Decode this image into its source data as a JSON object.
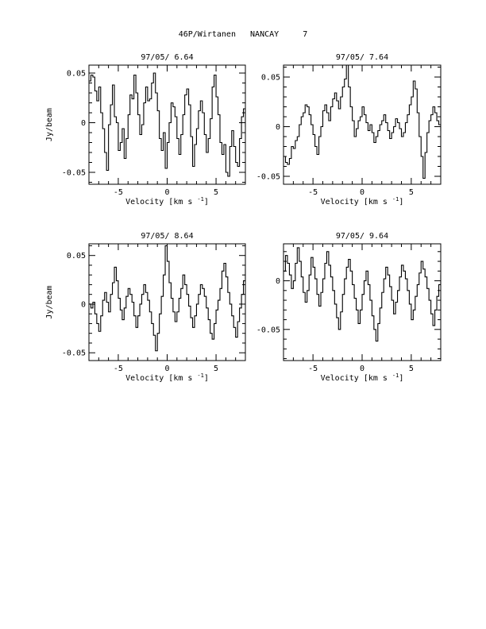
{
  "figure_title": "46P/Wirtanen   NANCAY     7",
  "shared": {
    "xlabel": "Velocity [km s",
    "xlabel_exp": "-1",
    "xlabel_close": "]",
    "ylabel": "Jy/beam"
  },
  "chart_data": [
    {
      "type": "line",
      "step": true,
      "title": "97/05/ 6.64",
      "xlabel": "Velocity [km s-1]",
      "ylabel": "Jy/beam",
      "xlim": [
        -8,
        8
      ],
      "ylim": [
        -0.062,
        0.058
      ],
      "xticks": [
        -5,
        0,
        5
      ],
      "xtick_labels": [
        "-5",
        "0",
        "5"
      ],
      "yticks": [
        -0.05,
        0,
        0.05
      ],
      "ytick_labels": [
        "-0.05",
        "0",
        "0.05"
      ],
      "grid": false,
      "x_start": -8,
      "x_step": 0.2,
      "values": [
        0.042,
        0.048,
        0.046,
        0.032,
        0.022,
        0.036,
        0.01,
        -0.006,
        -0.03,
        -0.048,
        -0.002,
        0.018,
        0.038,
        0.006,
        0.0,
        -0.028,
        -0.02,
        -0.006,
        -0.036,
        -0.016,
        0.008,
        0.028,
        0.024,
        0.048,
        0.03,
        0.008,
        -0.012,
        -0.002,
        0.02,
        0.036,
        0.022,
        0.024,
        0.04,
        0.05,
        0.03,
        0.012,
        -0.016,
        -0.028,
        -0.01,
        -0.046,
        -0.02,
        0.0,
        0.02,
        0.016,
        0.006,
        -0.016,
        -0.032,
        -0.012,
        0.008,
        0.028,
        0.034,
        0.018,
        -0.014,
        -0.044,
        -0.022,
        -0.006,
        0.012,
        0.022,
        0.01,
        -0.012,
        -0.03,
        -0.016,
        0.004,
        0.036,
        0.048,
        0.026,
        0.008,
        -0.02,
        -0.032,
        -0.022,
        -0.05,
        -0.054,
        -0.024,
        -0.008,
        -0.024,
        -0.04,
        -0.044,
        -0.016,
        0.006,
        0.014,
        -0.004,
        -0.018,
        0.01,
        0.026,
        0.044,
        0.032,
        0.012,
        -0.008,
        -0.002,
        0.012,
        0.026,
        0.01,
        -0.012,
        -0.036,
        -0.018,
        0.002,
        0.02,
        0.042,
        0.024,
        0.032,
        0.018,
        -0.004,
        0.01,
        0.028,
        0.008,
        -0.008,
        0.0,
        0.016,
        0.036,
        0.044,
        0.012,
        -0.018,
        -0.034,
        -0.01,
        0.004,
        0.02,
        0.036,
        0.024,
        -0.006,
        -0.028,
        -0.044,
        -0.02,
        0.01,
        0.022,
        0.002,
        -0.018,
        -0.04,
        -0.014,
        0.006,
        0.018,
        0.04,
        0.024,
        0.008,
        -0.012,
        0.0,
        0.014,
        0.04,
        0.05,
        0.034,
        0.012,
        -0.01,
        -0.026,
        -0.014,
        0.006,
        0.026,
        0.038,
        0.02,
        0.004,
        -0.014,
        -0.03,
        -0.008,
        0.016,
        0.034,
        0.046,
        0.028,
        0.01,
        -0.006,
        0.004,
        0.022,
        0.04,
        0.03,
        0.012,
        0.002,
        -0.014,
        -0.028,
        -0.01,
        0.006,
        0.02,
        0.036,
        0.016,
        0.0,
        -0.018,
        0.004,
        0.026,
        0.01,
        -0.01,
        -0.03,
        -0.042,
        -0.02,
        0.002,
        0.02,
        0.034,
        0.018,
        0.006,
        -0.012,
        -0.028,
        -0.04,
        -0.022,
        -0.004,
        0.014,
        0.028,
        0.01,
        -0.004,
        -0.022,
        -0.036,
        -0.018,
        0.002,
        0.02,
        0.01,
        -0.008
      ]
    },
    {
      "type": "line",
      "step": true,
      "title": "97/05/ 7.64",
      "xlabel": "Velocity [km s-1]",
      "ylabel": "",
      "xlim": [
        -8,
        8
      ],
      "ylim": [
        -0.058,
        0.062
      ],
      "xticks": [
        -5,
        0,
        5
      ],
      "xtick_labels": [
        "-5",
        "0",
        "5"
      ],
      "yticks": [
        -0.05,
        0,
        0.05
      ],
      "ytick_labels": [
        "-0.05",
        "0",
        "0.05"
      ],
      "grid": false,
      "x_start": -8,
      "x_step": 0.2,
      "values": [
        -0.03,
        -0.036,
        -0.038,
        -0.032,
        -0.02,
        -0.022,
        -0.014,
        -0.01,
        0.002,
        0.01,
        0.014,
        0.022,
        0.02,
        0.012,
        0.002,
        -0.008,
        -0.02,
        -0.028,
        -0.01,
        0.0,
        0.016,
        0.022,
        0.014,
        0.006,
        0.02,
        0.028,
        0.034,
        0.026,
        0.018,
        0.03,
        0.04,
        0.048,
        0.062,
        0.04,
        0.02,
        0.006,
        -0.01,
        -0.002,
        0.006,
        0.01,
        0.02,
        0.012,
        0.004,
        -0.004,
        0.002,
        -0.006,
        -0.016,
        -0.01,
        -0.004,
        0.002,
        0.006,
        0.012,
        0.004,
        -0.004,
        -0.012,
        -0.006,
        0.0,
        0.008,
        0.004,
        -0.002,
        -0.01,
        -0.006,
        0.004,
        0.012,
        0.022,
        0.03,
        0.046,
        0.038,
        0.014,
        -0.01,
        -0.03,
        -0.052,
        -0.026,
        -0.006,
        0.006,
        0.012,
        0.02,
        0.014,
        0.006,
        0.002,
        -0.004,
        0.004,
        0.012,
        0.01,
        0.004,
        -0.008,
        -0.014,
        -0.004,
        0.006,
        0.01,
        0.004,
        -0.004,
        -0.014,
        -0.008,
        0.0,
        0.01,
        0.018,
        0.012,
        0.004,
        -0.008,
        -0.02,
        -0.03,
        -0.014,
        -0.002,
        0.012,
        0.024,
        0.03,
        0.02,
        0.01,
        0.0,
        -0.01,
        -0.016,
        -0.008,
        0.002,
        0.014,
        0.008,
        0.0,
        -0.006,
        0.002,
        0.012,
        0.02,
        0.014,
        0.004,
        -0.006,
        -0.014,
        -0.008,
        0.002,
        0.01,
        0.018,
        0.012,
        0.006,
        -0.002,
        -0.01,
        -0.018,
        -0.028,
        -0.016,
        -0.004,
        0.006,
        0.014,
        0.02,
        0.012,
        0.004,
        -0.004,
        -0.012,
        -0.02,
        -0.012,
        0.0,
        0.01,
        0.016,
        0.01,
        0.004,
        -0.006,
        -0.014,
        -0.02,
        -0.028,
        -0.018,
        -0.006,
        0.004,
        0.012,
        0.008,
        0.002,
        0.01,
        0.018,
        0.012,
        0.004,
        -0.004,
        -0.012,
        -0.018,
        -0.026,
        -0.016,
        -0.004,
        0.006,
        0.014,
        0.008,
        0.0,
        -0.008,
        -0.016,
        -0.01,
        0.0,
        0.01,
        0.018,
        0.012,
        0.004,
        -0.006,
        -0.014,
        -0.022,
        -0.014,
        -0.004,
        0.006,
        0.014,
        0.02,
        0.024,
        0.016,
        0.006,
        -0.004,
        -0.014,
        -0.02,
        -0.012,
        -0.002,
        0.008,
        0.014,
        0.006,
        -0.002
      ]
    },
    {
      "type": "line",
      "step": true,
      "title": "97/05/ 8.64",
      "xlabel": "Velocity [km s-1]",
      "ylabel": "Jy/beam",
      "xlim": [
        -8,
        8
      ],
      "ylim": [
        -0.058,
        0.062
      ],
      "xticks": [
        -5,
        0,
        5
      ],
      "xtick_labels": [
        "-5",
        "0",
        "5"
      ],
      "yticks": [
        -0.05,
        0,
        0.05
      ],
      "ytick_labels": [
        "-0.05",
        "0",
        "0.05"
      ],
      "grid": false,
      "x_start": -8,
      "x_step": 0.2,
      "values": [
        0.0,
        -0.004,
        0.002,
        -0.01,
        -0.02,
        -0.028,
        -0.012,
        0.004,
        0.012,
        0.002,
        -0.008,
        0.01,
        0.022,
        0.038,
        0.024,
        0.006,
        -0.006,
        -0.016,
        -0.004,
        0.008,
        0.016,
        0.01,
        0.002,
        -0.012,
        -0.024,
        -0.012,
        0.0,
        0.01,
        0.02,
        0.012,
        0.004,
        -0.008,
        -0.02,
        -0.032,
        -0.048,
        -0.03,
        -0.01,
        0.008,
        0.03,
        0.06,
        0.044,
        0.022,
        0.006,
        -0.008,
        -0.018,
        -0.008,
        0.006,
        0.016,
        0.03,
        0.02,
        0.01,
        -0.002,
        -0.014,
        -0.024,
        -0.012,
        0.0,
        0.01,
        0.02,
        0.016,
        0.008,
        -0.004,
        -0.016,
        -0.03,
        -0.036,
        -0.02,
        -0.006,
        0.004,
        0.016,
        0.034,
        0.042,
        0.028,
        0.012,
        0.0,
        -0.012,
        -0.024,
        -0.034,
        -0.018,
        -0.004,
        0.01,
        0.024,
        0.036,
        0.024,
        0.01,
        -0.002,
        -0.014,
        -0.03,
        -0.038,
        -0.022,
        -0.006,
        0.006,
        0.016,
        0.01,
        0.002,
        -0.008,
        -0.018,
        -0.028,
        -0.014,
        -0.002,
        0.01,
        0.022,
        0.034,
        0.026,
        0.012,
        0.002,
        -0.01,
        -0.02,
        -0.028,
        -0.016,
        -0.004,
        0.008,
        0.02,
        0.03,
        0.02,
        0.008,
        -0.004,
        -0.016,
        -0.026,
        -0.036,
        -0.02,
        -0.006,
        0.006,
        0.018,
        0.032,
        0.024,
        0.01,
        -0.002,
        -0.012,
        -0.022,
        -0.03,
        -0.016,
        -0.004,
        0.008,
        0.02,
        0.034,
        0.026,
        0.012,
        0.002,
        -0.01,
        -0.022,
        -0.032,
        -0.02,
        -0.008,
        0.004,
        0.016,
        0.026,
        0.018,
        0.008,
        -0.004,
        -0.016,
        -0.028,
        -0.038,
        -0.024,
        -0.008,
        0.004,
        0.018,
        0.03,
        0.022,
        0.01,
        -0.002,
        -0.014,
        -0.026,
        -0.034,
        -0.018,
        -0.004,
        0.008,
        0.02,
        0.034,
        0.028,
        0.014,
        0.002,
        -0.01,
        -0.022,
        -0.03,
        -0.016,
        -0.004,
        0.008,
        0.018,
        0.01,
        0.002,
        -0.008,
        -0.02,
        -0.034,
        -0.02,
        -0.006,
        0.006,
        0.018,
        0.028,
        0.018,
        0.006,
        -0.006,
        -0.018,
        -0.03,
        -0.04,
        -0.054,
        -0.03,
        -0.012,
        0.004,
        0.01
      ]
    },
    {
      "type": "line",
      "step": true,
      "title": "97/05/ 9.64",
      "xlabel": "Velocity [km s-1]",
      "ylabel": "",
      "xlim": [
        -8,
        8
      ],
      "ylim": [
        -0.082,
        0.038
      ],
      "xticks": [
        -5,
        0,
        5
      ],
      "xtick_labels": [
        "-5",
        "0",
        "5"
      ],
      "yticks": [
        -0.05,
        0
      ],
      "ytick_labels": [
        "-0.05",
        "0"
      ],
      "grid": false,
      "x_start": -8,
      "x_step": 0.2,
      "values": [
        0.01,
        0.026,
        0.018,
        0.006,
        -0.008,
        0.0,
        0.018,
        0.034,
        0.02,
        0.004,
        -0.012,
        -0.022,
        -0.01,
        0.006,
        0.024,
        0.014,
        0.002,
        -0.014,
        -0.026,
        -0.012,
        0.002,
        0.018,
        0.03,
        0.016,
        0.004,
        -0.01,
        -0.024,
        -0.038,
        -0.05,
        -0.032,
        -0.014,
        0.002,
        0.014,
        0.022,
        0.01,
        -0.004,
        -0.018,
        -0.03,
        -0.044,
        -0.03,
        -0.014,
        0.0,
        0.01,
        -0.004,
        -0.02,
        -0.036,
        -0.05,
        -0.062,
        -0.044,
        -0.028,
        -0.012,
        0.002,
        0.014,
        0.006,
        -0.006,
        -0.02,
        -0.034,
        -0.022,
        -0.01,
        0.004,
        0.016,
        0.01,
        0.002,
        -0.01,
        -0.024,
        -0.04,
        -0.03,
        -0.016,
        -0.004,
        0.008,
        0.02,
        0.012,
        0.004,
        -0.008,
        -0.02,
        -0.034,
        -0.046,
        -0.03,
        -0.016,
        -0.004,
        0.006,
        0.016,
        0.01,
        0.0,
        -0.012,
        -0.026,
        -0.04,
        -0.056,
        -0.072,
        -0.05,
        -0.03,
        -0.014,
        0.0,
        0.012,
        0.006,
        -0.004,
        -0.016,
        -0.03,
        -0.044,
        -0.03,
        -0.016,
        -0.004,
        0.008,
        0.016,
        0.01,
        0.002,
        -0.01,
        -0.022,
        -0.036,
        -0.024,
        -0.012,
        0.0,
        0.01,
        0.018,
        0.012,
        0.004,
        -0.006,
        -0.018,
        -0.03,
        -0.018,
        -0.006,
        0.006,
        0.016,
        0.024,
        0.016,
        0.006,
        -0.004,
        -0.016,
        -0.028,
        -0.016,
        -0.004,
        0.008,
        0.018,
        0.026,
        0.018,
        0.008,
        -0.002,
        -0.012,
        -0.024,
        -0.014,
        -0.002,
        0.01,
        0.02,
        0.028,
        0.02,
        0.01,
        0.0,
        -0.01,
        -0.022,
        -0.012,
        0.0,
        0.01,
        0.02,
        0.03,
        0.022,
        0.012,
        0.002,
        -0.008,
        -0.018,
        -0.008,
        0.004,
        0.014,
        0.024,
        0.016,
        0.006,
        -0.004,
        -0.014,
        -0.024,
        -0.014,
        -0.004,
        0.008,
        0.018,
        0.028,
        0.02,
        0.01,
        0.0,
        -0.01,
        -0.02,
        -0.01,
        0.002,
        0.012,
        0.022,
        0.014,
        0.004,
        -0.006,
        -0.016,
        -0.008,
        0.004,
        0.014,
        0.024,
        0.016,
        0.006,
        -0.004,
        -0.014,
        -0.006,
        0.004,
        0.012,
        0.02,
        0.01
      ]
    }
  ]
}
